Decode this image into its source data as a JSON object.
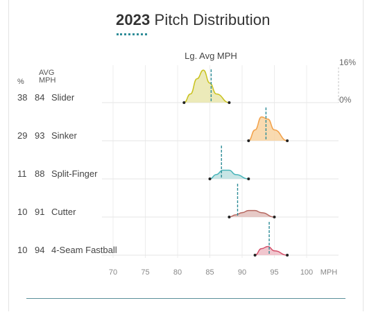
{
  "header": {
    "title_year": "2023",
    "title_text": " Pitch Distribution"
  },
  "colors": {
    "accent": "#2f8d98",
    "grid": "#ececec",
    "text": "#444444"
  },
  "chart_data": {
    "type": "area",
    "title": "2023 Pitch Distribution",
    "xlabel": "MPH",
    "xlim": [
      65,
      102
    ],
    "x_ticks": [
      70,
      75,
      80,
      85,
      90,
      95,
      100
    ],
    "x_unit_label": "MPH",
    "col_header_pct": "%",
    "col_header_avg": "AVG\nMPH",
    "lg_avg_label": "Lg. Avg MPH",
    "scale_top_label": "16%",
    "scale_bottom_label": "0%",
    "grid": true,
    "series": [
      {
        "name": "Slider",
        "pct": "38",
        "avg": "84",
        "color": "#c9c21e",
        "fill": "#e9e6ad",
        "x": [
          81,
          82,
          83,
          84,
          85,
          86,
          88
        ],
        "y": [
          0,
          4,
          11,
          15,
          9,
          4,
          0
        ],
        "lg_avg": 85.2
      },
      {
        "name": "Sinker",
        "pct": "29",
        "avg": "93",
        "color": "#f2a14a",
        "fill": "#f8d3a2",
        "x": [
          91,
          92,
          93,
          94,
          95,
          97
        ],
        "y": [
          0,
          5,
          11,
          10,
          5,
          0
        ],
        "lg_avg": 93.7
      },
      {
        "name": "Split-Finger",
        "pct": "11",
        "avg": "88",
        "color": "#49b5ba",
        "fill": "#bde0e1",
        "x": [
          85,
          86,
          87,
          88,
          89,
          91
        ],
        "y": [
          0,
          2,
          4,
          4,
          2,
          0
        ],
        "lg_avg": 86.8
      },
      {
        "name": "Cutter",
        "pct": "10",
        "avg": "91",
        "color": "#b5665e",
        "fill": "#e2c0bc",
        "x": [
          88,
          89,
          90,
          91,
          92,
          93,
          95
        ],
        "y": [
          0,
          1,
          2,
          3,
          3,
          2,
          0
        ],
        "lg_avg": 89.3
      },
      {
        "name": "4-Seam Fastball",
        "pct": "10",
        "avg": "94",
        "color": "#d4506a",
        "fill": "#efbcc6",
        "x": [
          92,
          93,
          94,
          95,
          97
        ],
        "y": [
          0,
          3,
          4,
          2,
          0
        ],
        "lg_avg": 94.2
      }
    ]
  }
}
